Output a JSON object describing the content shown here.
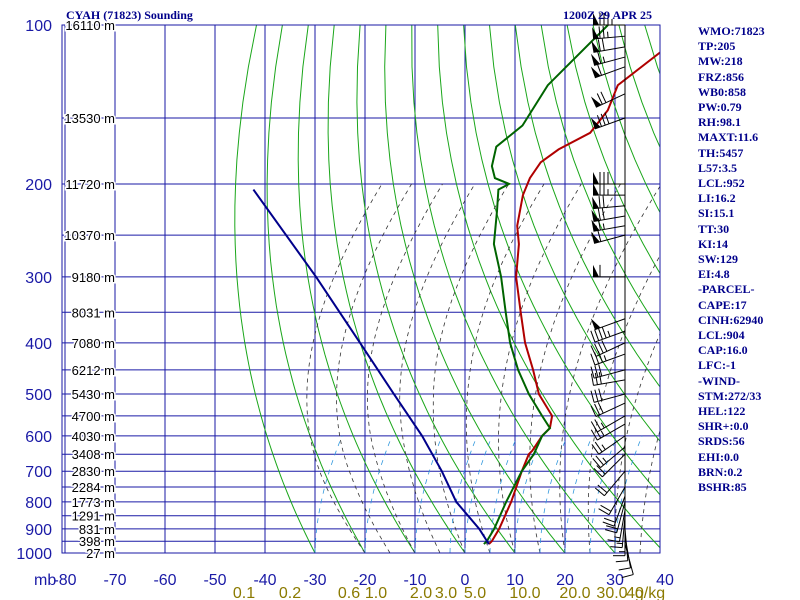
{
  "header": {
    "station_title": "CYAH (71823) Sounding",
    "time_title": "1200Z 29 APR 25"
  },
  "indices": [
    "WMO:71823",
    "TP:205",
    "MW:218",
    "FRZ:856",
    "WB0:858",
    "PW:0.79",
    "RH:98.1",
    "MAXT:11.6",
    "TH:5457",
    "L57:3.5",
    "LCL:952",
    "LI:16.2",
    "SI:15.1",
    "TT:30",
    "KI:14",
    "SW:129",
    "EI:4.8",
    "-PARCEL-",
    "CAPE:17",
    "CINH:62940",
    "LCL:904",
    "CAP:16.0",
    "LFC:-1",
    "-WIND-",
    "STM:272/33",
    "HEL:122",
    "SHR+:0.0",
    "SRDS:56",
    "EHI:0.0",
    "BRN:0.2",
    "BSHR:85"
  ],
  "chart_data": {
    "type": "line",
    "title": "CYAH (71823) Sounding",
    "subtitle": "1200Z 29 APR 25",
    "xlabel": "",
    "ylabel": "mb",
    "y_scale": "log",
    "x_ticks": [
      -80,
      -70,
      -60,
      -50,
      -40,
      -30,
      -20,
      -10,
      0,
      10,
      20,
      30,
      40
    ],
    "y_ticks": [
      100,
      200,
      300,
      400,
      500,
      600,
      700,
      800,
      900,
      1000
    ],
    "mixing_ratio_labels": [
      "0.1",
      "0.2",
      "0.6",
      "1.0",
      "2.0",
      "3.0",
      "5.0",
      "10.0",
      "20.0",
      "30.0",
      "40",
      "g/kg"
    ],
    "height_labels": [
      {
        "p": 100,
        "label": "16110 m"
      },
      {
        "p": 150,
        "label": "13530 m"
      },
      {
        "p": 200,
        "label": "11720 m"
      },
      {
        "p": 250,
        "label": "10370 m"
      },
      {
        "p": 300,
        "label": "9180 m"
      },
      {
        "p": 350,
        "label": "8031 m"
      },
      {
        "p": 400,
        "label": "7080 m"
      },
      {
        "p": 450,
        "label": "6212 m"
      },
      {
        "p": 500,
        "label": "5430 m"
      },
      {
        "p": 550,
        "label": "4700 m"
      },
      {
        "p": 600,
        "label": "4030 m"
      },
      {
        "p": 650,
        "label": "3408 m"
      },
      {
        "p": 700,
        "label": "2830 m"
      },
      {
        "p": 750,
        "label": "2284 m"
      },
      {
        "p": 800,
        "label": "1773 m"
      },
      {
        "p": 850,
        "label": "1291 m"
      },
      {
        "p": 900,
        "label": "831 m"
      },
      {
        "p": 950,
        "label": "398 m"
      },
      {
        "p": 1000,
        "label": "27 m"
      }
    ],
    "series": [
      {
        "kind": "temperature",
        "color": "#b00000",
        "points": [
          [
            100,
            -58
          ],
          [
            112,
            -61
          ],
          [
            130,
            -63
          ],
          [
            145,
            -60
          ],
          [
            160,
            -59
          ],
          [
            172,
            -62
          ],
          [
            182,
            -63
          ],
          [
            195,
            -62
          ],
          [
            210,
            -60
          ],
          [
            240,
            -55
          ],
          [
            260,
            -51
          ],
          [
            300,
            -45
          ],
          [
            350,
            -37
          ],
          [
            400,
            -30
          ],
          [
            450,
            -23
          ],
          [
            500,
            -17
          ],
          [
            550,
            -10
          ],
          [
            580,
            -8
          ],
          [
            600,
            -8
          ],
          [
            640,
            -7
          ],
          [
            650,
            -7
          ],
          [
            700,
            -5
          ],
          [
            800,
            -1
          ],
          [
            900,
            2
          ],
          [
            950,
            3
          ],
          [
            962,
            3
          ]
        ]
      },
      {
        "kind": "dewpoint",
        "color": "#006400",
        "points": [
          [
            100,
            -77
          ],
          [
            130,
            -77
          ],
          [
            155,
            -74
          ],
          [
            170,
            -75
          ],
          [
            185,
            -72
          ],
          [
            195,
            -69
          ],
          [
            200,
            -65
          ],
          [
            205,
            -66
          ],
          [
            225,
            -62
          ],
          [
            260,
            -56
          ],
          [
            300,
            -48
          ],
          [
            350,
            -40
          ],
          [
            400,
            -33
          ],
          [
            450,
            -26
          ],
          [
            500,
            -19
          ],
          [
            550,
            -12
          ],
          [
            580,
            -8
          ],
          [
            600,
            -8
          ],
          [
            650,
            -6
          ],
          [
            700,
            -5
          ],
          [
            800,
            -2
          ],
          [
            900,
            1
          ],
          [
            950,
            2
          ],
          [
            962,
            2
          ]
        ]
      },
      {
        "kind": "parcel",
        "color": "#00008b",
        "points": [
          [
            962,
            3
          ],
          [
            900,
            -2
          ],
          [
            800,
            -12
          ],
          [
            700,
            -21
          ],
          [
            600,
            -32
          ],
          [
            500,
            -46
          ],
          [
            400,
            -63
          ],
          [
            300,
            -85
          ],
          [
            205,
            -115
          ]
        ]
      }
    ],
    "wind_barbs": [
      {
        "p": 100,
        "dir": 270,
        "kt": 85
      },
      {
        "p": 105,
        "dir": 265,
        "kt": 75
      },
      {
        "p": 110,
        "dir": 260,
        "kt": 70
      },
      {
        "p": 115,
        "dir": 255,
        "kt": 65
      },
      {
        "p": 120,
        "dir": 250,
        "kt": 60
      },
      {
        "p": 135,
        "dir": 245,
        "kt": 70
      },
      {
        "p": 150,
        "dir": 250,
        "kt": 80
      },
      {
        "p": 200,
        "dir": 270,
        "kt": 80
      },
      {
        "p": 210,
        "dir": 270,
        "kt": 75
      },
      {
        "p": 220,
        "dir": 265,
        "kt": 70
      },
      {
        "p": 230,
        "dir": 260,
        "kt": 70
      },
      {
        "p": 240,
        "dir": 260,
        "kt": 65
      },
      {
        "p": 250,
        "dir": 255,
        "kt": 60
      },
      {
        "p": 300,
        "dir": 270,
        "kt": 60
      },
      {
        "p": 360,
        "dir": 250,
        "kt": 50
      },
      {
        "p": 380,
        "dir": 250,
        "kt": 45
      },
      {
        "p": 400,
        "dir": 245,
        "kt": 40
      },
      {
        "p": 420,
        "dir": 250,
        "kt": 35
      },
      {
        "p": 450,
        "dir": 255,
        "kt": 30
      },
      {
        "p": 470,
        "dir": 260,
        "kt": 30
      },
      {
        "p": 500,
        "dir": 255,
        "kt": 30
      },
      {
        "p": 520,
        "dir": 245,
        "kt": 30
      },
      {
        "p": 550,
        "dir": 240,
        "kt": 25
      },
      {
        "p": 570,
        "dir": 240,
        "kt": 25
      },
      {
        "p": 600,
        "dir": 235,
        "kt": 25
      },
      {
        "p": 630,
        "dir": 230,
        "kt": 25
      },
      {
        "p": 650,
        "dir": 225,
        "kt": 20
      },
      {
        "p": 700,
        "dir": 220,
        "kt": 20
      },
      {
        "p": 750,
        "dir": 210,
        "kt": 20
      },
      {
        "p": 780,
        "dir": 200,
        "kt": 20
      },
      {
        "p": 800,
        "dir": 195,
        "kt": 20
      },
      {
        "p": 830,
        "dir": 190,
        "kt": 15
      },
      {
        "p": 850,
        "dir": 185,
        "kt": 15
      },
      {
        "p": 880,
        "dir": 180,
        "kt": 15
      },
      {
        "p": 900,
        "dir": 175,
        "kt": 10
      },
      {
        "p": 930,
        "dir": 170,
        "kt": 10
      },
      {
        "p": 960,
        "dir": 165,
        "kt": 10
      }
    ]
  }
}
